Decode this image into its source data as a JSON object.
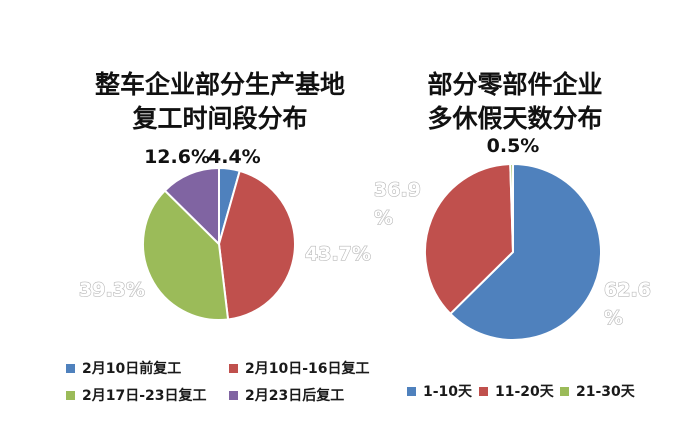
{
  "chart_data": [
    {
      "type": "pie",
      "title_lines": [
        "整车企业部分生产基地",
        "复工时间段分布"
      ],
      "categories": [
        "2月10日前复工",
        "2月10日-16日复工",
        "2月17日-23日复工",
        "2月23日后复工"
      ],
      "values": [
        4.4,
        43.7,
        39.3,
        12.6
      ],
      "value_labels": [
        "4.4%",
        "43.7%",
        "39.3%",
        "12.6%"
      ],
      "colors": [
        "#4f81bd",
        "#c0504d",
        "#9bbb59",
        "#8064a2"
      ],
      "legend_position": "bottom"
    },
    {
      "type": "pie",
      "title_lines": [
        "部分零部件企业",
        "多休假天数分布"
      ],
      "categories": [
        "1-10天",
        "11-20天",
        "21-30天"
      ],
      "values": [
        62.6,
        36.9,
        0.5
      ],
      "value_labels": [
        "62.6%",
        "36.9%",
        "0.5%"
      ],
      "colors": [
        "#4f81bd",
        "#c0504d",
        "#9bbb59"
      ],
      "legend_position": "bottom"
    }
  ]
}
